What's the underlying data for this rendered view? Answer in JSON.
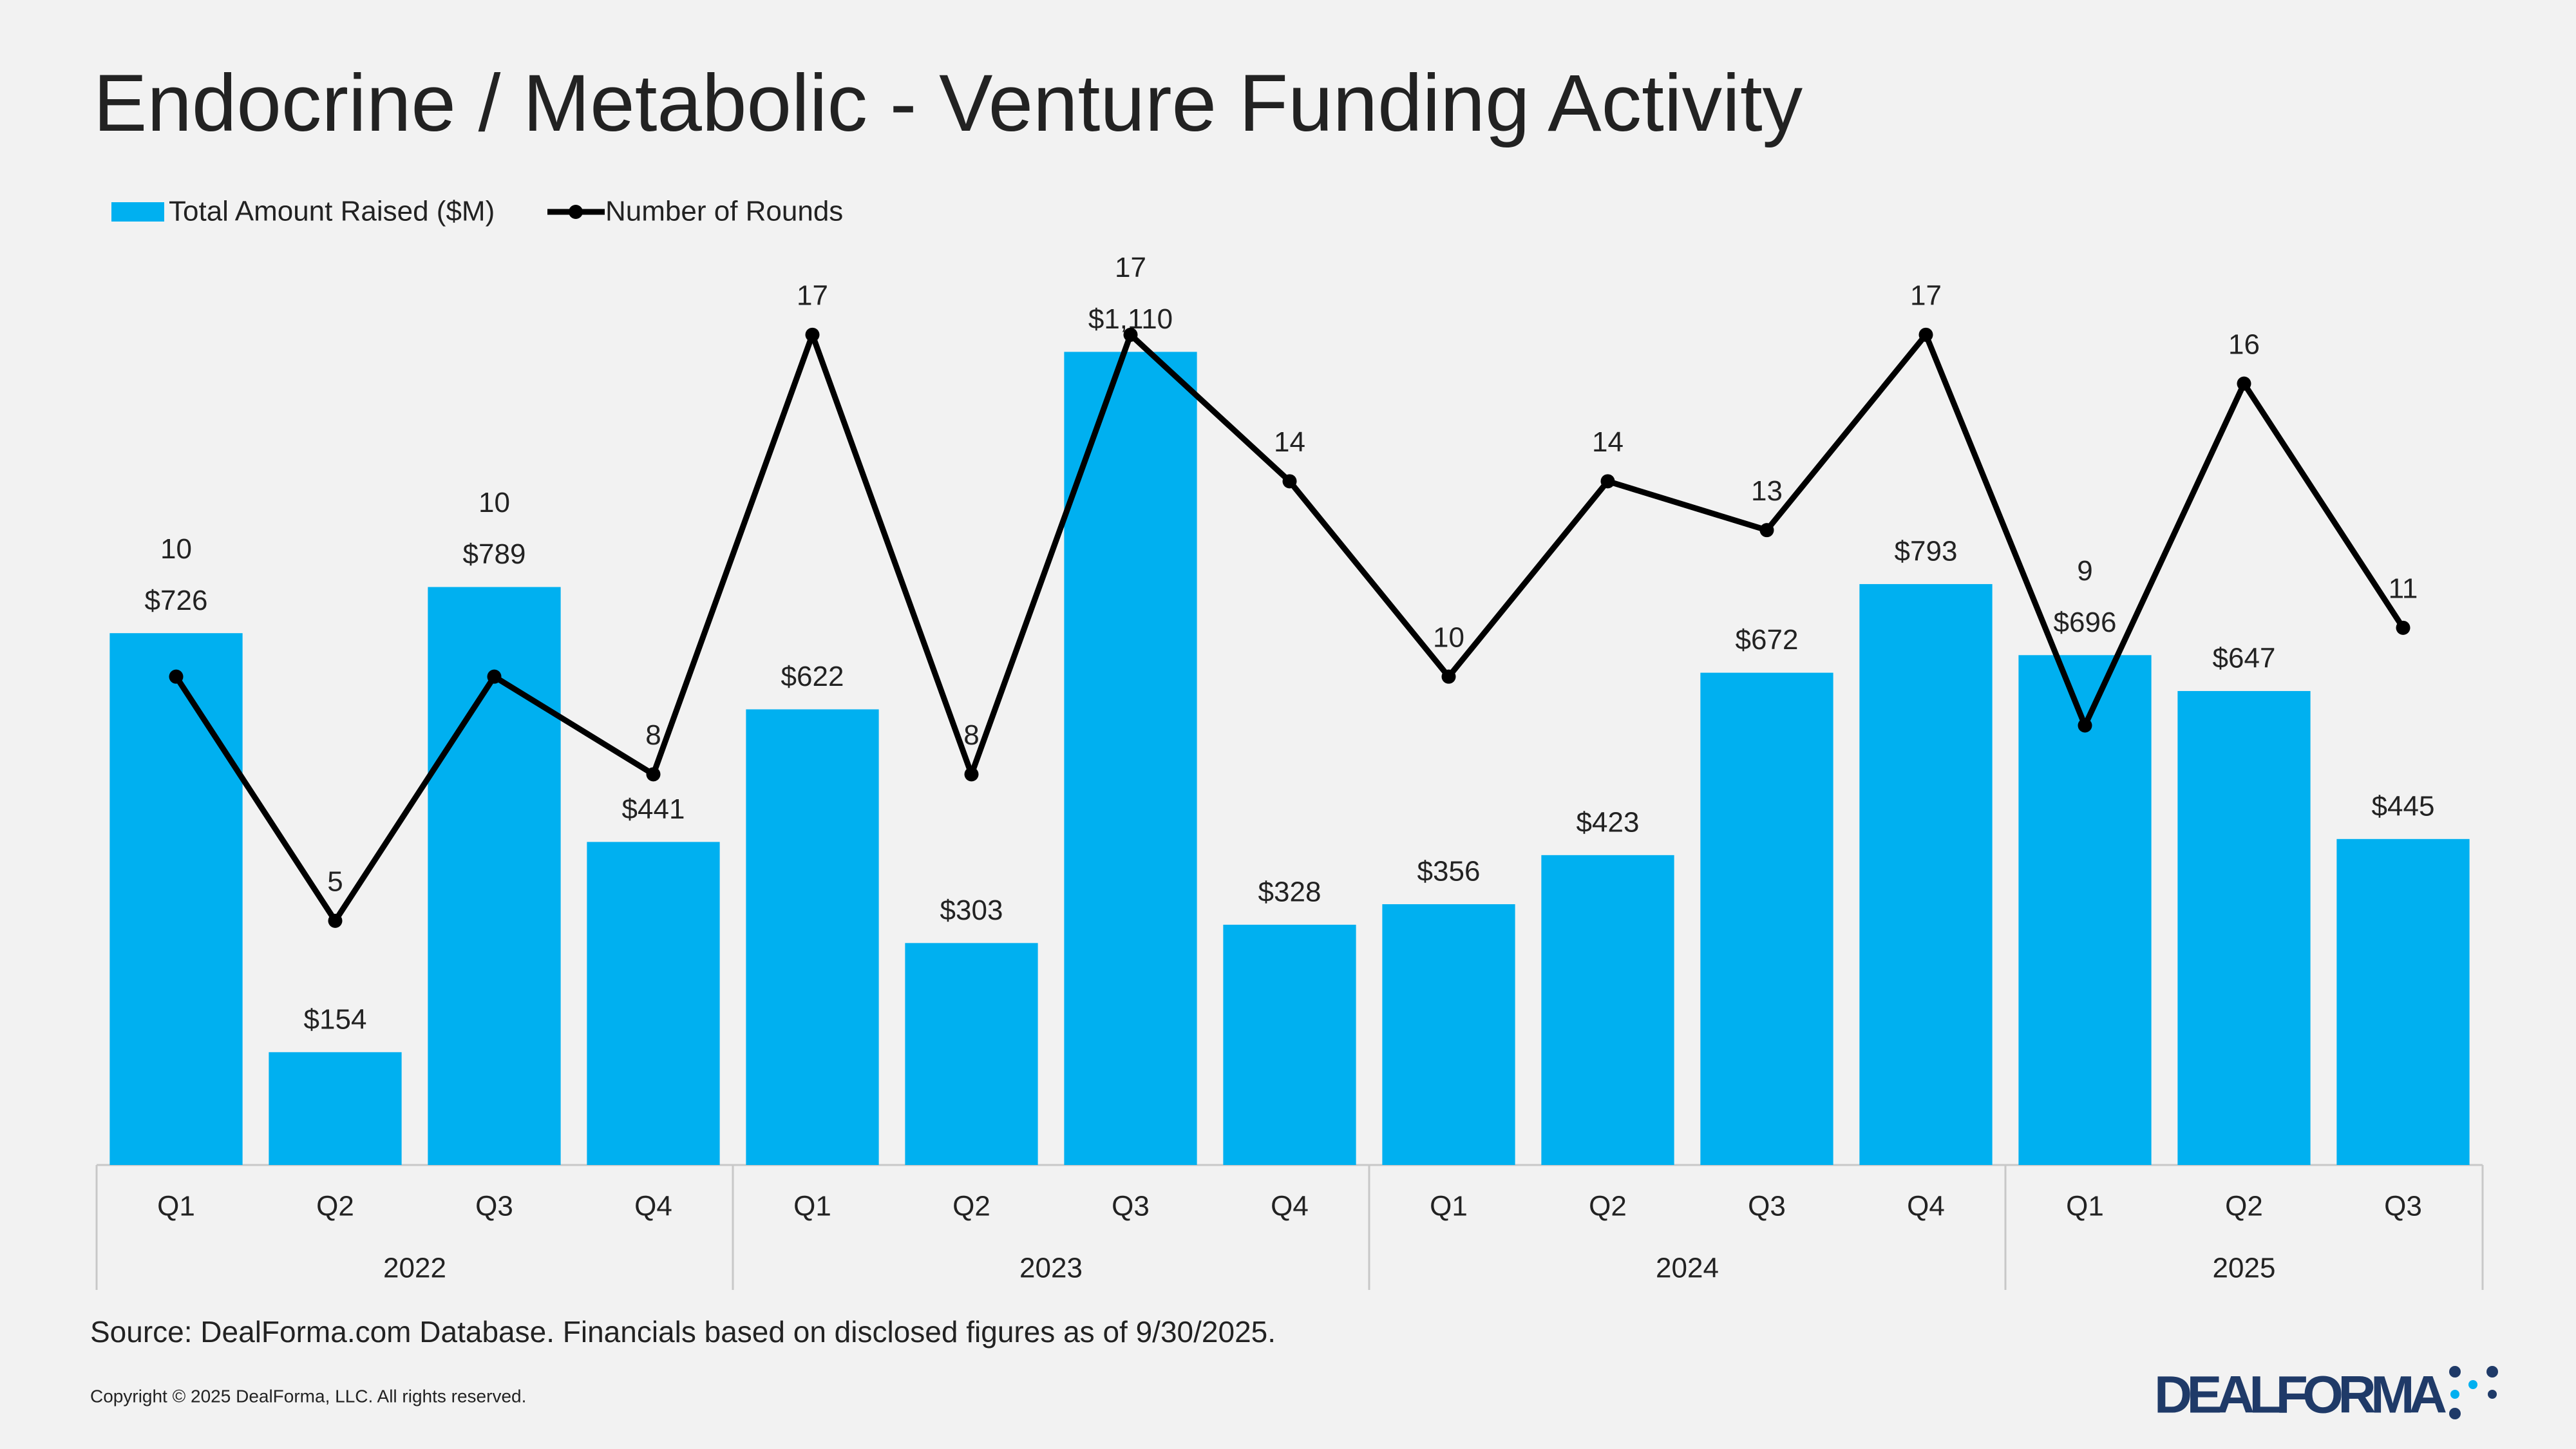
{
  "chart_data": {
    "type": "bar-line",
    "title": "Endocrine / Metabolic - Venture Funding Activity",
    "groups": [
      {
        "label": "2022",
        "categories": [
          "Q1",
          "Q2",
          "Q3",
          "Q4"
        ]
      },
      {
        "label": "2023",
        "categories": [
          "Q1",
          "Q2",
          "Q3",
          "Q4"
        ]
      },
      {
        "label": "2024",
        "categories": [
          "Q1",
          "Q2",
          "Q3",
          "Q4"
        ]
      },
      {
        "label": "2025",
        "categories": [
          "Q1",
          "Q2",
          "Q3"
        ]
      }
    ],
    "series": [
      {
        "name": "Total Amount Raised ($M)",
        "type": "bar",
        "color": "#00b0f0",
        "values": [
          726,
          154,
          789,
          441,
          622,
          303,
          1110,
          328,
          356,
          423,
          672,
          793,
          696,
          647,
          445
        ],
        "value_labels": [
          "$726",
          "$154",
          "$789",
          "$441",
          "$622",
          "$303",
          "$1,110",
          "$328",
          "$356",
          "$423",
          "$672",
          "$793",
          "$696",
          "$647",
          "$445"
        ]
      },
      {
        "name": "Number of Rounds",
        "type": "line",
        "color": "#000000",
        "axis": "y2",
        "values": [
          10,
          5,
          10,
          8,
          17,
          8,
          17,
          14,
          10,
          14,
          13,
          17,
          9,
          16,
          11
        ]
      }
    ],
    "ylim": [
      0,
      1200
    ],
    "y2lim": [
      0,
      18
    ],
    "source": "Source: DealForma.com Database. Financials based on disclosed figures as of 9/30/2025.",
    "copyright": "Copyright © 2025 DealForma, LLC. All rights reserved.",
    "logo": "DEALFORMA"
  }
}
